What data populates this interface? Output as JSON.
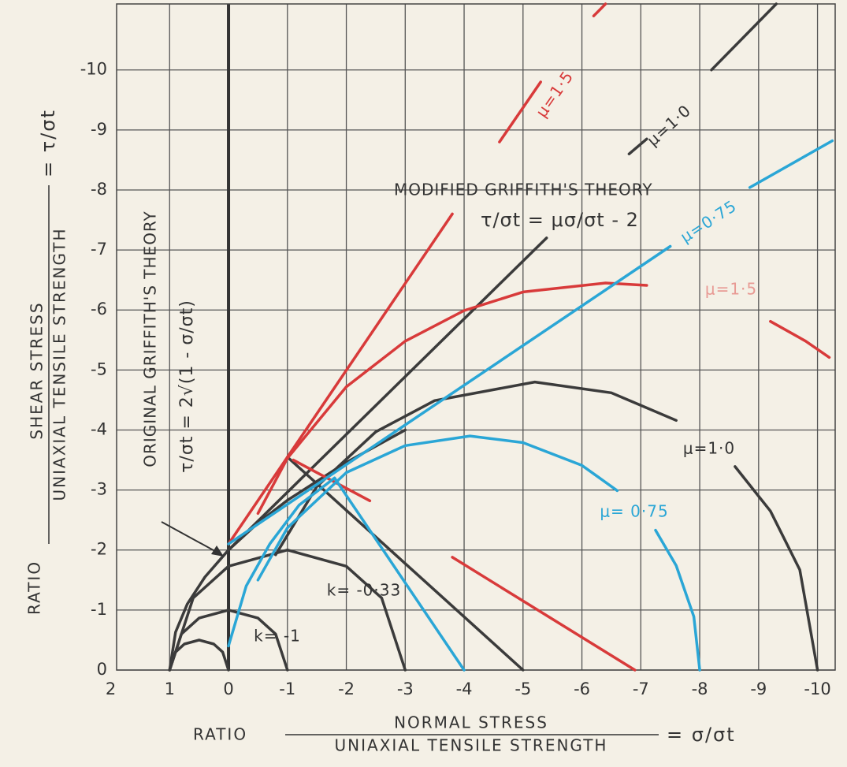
{
  "chart_data": {
    "type": "line",
    "x_axis_label": {
      "prefix": "RATIO",
      "numerator": "NORMAL STRESS",
      "denominator": "UNIAXIAL TENSILE STRENGTH",
      "suffix": "= σ/σt"
    },
    "y_axis_label": {
      "prefix": "RATIO",
      "numerator": "SHEAR STRESS",
      "denominator": "UNIAXIAL TENSILE STRENGTH",
      "suffix": "= τ/σt"
    },
    "annotations": [
      "μ=1·5",
      "μ=1·0",
      "MODIFIED GRIFFITH'S THEORY",
      "τ/σt = μσ/σt - 2",
      "μ=0·75",
      "μ=1·5",
      "μ=1·0",
      "μ= 0·75",
      "k= -0·33",
      "k= -1",
      "ORIGINAL GRIFFITH'S THEORY",
      "τ/σt = 2√(1 - σ/σt)"
    ],
    "xlim": [
      1.9,
      -10.3
    ],
    "ylim": [
      0,
      -11.1
    ],
    "xticks": [
      2,
      1,
      0,
      -1,
      -2,
      -3,
      -4,
      -5,
      -6,
      -7,
      -8,
      -9,
      -10
    ],
    "yticks": [
      0,
      -1,
      -2,
      -3,
      -4,
      -5,
      -6,
      -7,
      -8,
      -9,
      -10
    ],
    "grid": true,
    "series": [
      {
        "color": "#3b3b3b",
        "x": [
          1,
          0.9,
          0.75,
          0.5,
          0.25,
          0.1,
          0
        ],
        "values": [
          0,
          -0.3,
          -0.433,
          -0.5,
          -0.433,
          -0.3,
          0
        ]
      },
      {
        "color": "#3b3b3b",
        "x": [
          1,
          0.8,
          0.5,
          0,
          -0.5,
          -0.8,
          -1
        ],
        "values": [
          0,
          -0.6,
          -0.866,
          -1,
          -0.866,
          -0.6,
          0
        ]
      },
      {
        "color": "#3b3b3b",
        "x": [
          1,
          0.6,
          0,
          -1,
          -2,
          -2.6,
          -3
        ],
        "values": [
          0,
          -1.2,
          -1.73,
          -2,
          -1.73,
          -1.2,
          0
        ]
      },
      {
        "color": "#3b3b3b",
        "x": [
          -0.8,
          -1.5,
          -2.5,
          -3.5,
          -5.2,
          -6.5,
          -7.6,
          null,
          -8.6,
          -9.2,
          -9.7,
          -10
        ],
        "values": [
          -1.92,
          -3.06,
          -3.97,
          -4.49,
          -4.8,
          -4.62,
          -4.16,
          null,
          -3.39,
          -2.65,
          -1.67,
          0
        ]
      },
      {
        "color": "#3b3b3b",
        "x": [
          1,
          0.9,
          0.7,
          0.4,
          0,
          -0.5,
          -1,
          -2,
          -3
        ],
        "values": [
          0,
          -0.63,
          -1.1,
          -1.55,
          -2,
          -2.45,
          -2.83,
          -3.46,
          -4
        ]
      },
      {
        "color": "#3b3b3b",
        "x": [
          0,
          -5.4,
          null,
          -6.8,
          -7.1,
          null,
          -8.2,
          -9.3
        ],
        "values": [
          -2,
          -7.2,
          null,
          -8.6,
          -8.85,
          null,
          -10,
          -11.1
        ]
      },
      {
        "color": "#3b3b3b",
        "x": [
          -1,
          -5
        ],
        "values": [
          -3.55,
          0
        ]
      },
      {
        "color": "#d83a3a",
        "x": [
          -0.5,
          -1,
          -2,
          -3,
          -4,
          -5,
          -6.4,
          -7.1,
          null,
          -9.2,
          -9.8,
          -10.2
        ],
        "values": [
          -2.61,
          -3.53,
          -4.72,
          -5.48,
          -5.99,
          -6.3,
          -6.45,
          -6.41,
          null,
          -5.81,
          -5.48,
          -5.21
        ]
      },
      {
        "color": "#d83a3a",
        "x": [
          0,
          -3.8,
          null,
          -4.6,
          -5.3,
          null,
          -6.2,
          -6.4
        ],
        "values": [
          -2.1,
          -7.6,
          null,
          -8.8,
          -9.8,
          null,
          -10.9,
          -11.1
        ]
      },
      {
        "color": "#d83a3a",
        "x": [
          -1.1,
          -2.4,
          null,
          -3.8,
          -6.9
        ],
        "values": [
          -3.5,
          -2.82,
          null,
          -1.88,
          0
        ]
      },
      {
        "color": "#2aa6d6",
        "x": [
          -0.5,
          -1,
          -2,
          -3,
          -4.1,
          -5,
          -6,
          -6.6
        ],
        "values": [
          -1.5,
          -2.37,
          -3.29,
          -3.74,
          -3.9,
          -3.79,
          -3.41,
          -2.99
        ]
      },
      {
        "color": "#2aa6d6",
        "x": [
          -7.25,
          -7.6,
          -7.9,
          -8
        ],
        "values": [
          -2.33,
          -1.74,
          -0.89,
          0
        ]
      },
      {
        "color": "#2aa6d6",
        "x": [
          0,
          -0.3,
          -0.7,
          -1.2,
          -1.8
        ],
        "values": [
          -0.4,
          -1.4,
          -2.1,
          -2.75,
          -3.2
        ]
      },
      {
        "color": "#2aa6d6",
        "x": [
          -1.8,
          -4
        ],
        "values": [
          -3.2,
          0
        ]
      },
      {
        "color": "#2aa6d6",
        "x": [
          0,
          -7.5,
          null,
          -8.85,
          -10.25
        ],
        "values": [
          -2.1,
          -7.06,
          null,
          -8.04,
          -8.82
        ]
      }
    ]
  }
}
